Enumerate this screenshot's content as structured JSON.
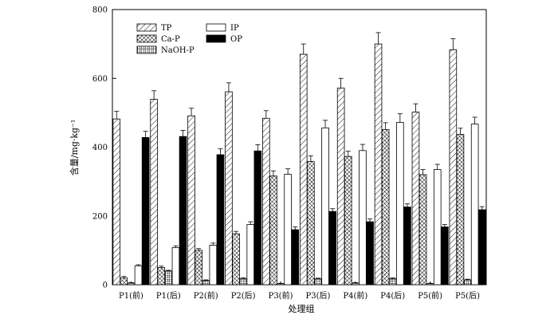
{
  "chart_data": {
    "type": "bar",
    "title": "",
    "xlabel": "处理组",
    "ylabel": "含量/mg·kg⁻¹",
    "ylim": [
      0,
      800
    ],
    "yticks": [
      0,
      200,
      400,
      600,
      800
    ],
    "grid": false,
    "legend_position": "top-left",
    "categories": [
      "P1(前)",
      "P1(后)",
      "P2(前)",
      "P2(后)",
      "P3(前)",
      "P3(后)",
      "P4(前)",
      "P4(后)",
      "P5(前)",
      "P5(后)"
    ],
    "series": [
      {
        "name": "TP",
        "pattern": "diagonal-hatch",
        "values": [
          482,
          539,
          491,
          561,
          484,
          670,
          572,
          700,
          502,
          683
        ],
        "errors": [
          22,
          25,
          22,
          26,
          22,
          30,
          28,
          33,
          24,
          32
        ]
      },
      {
        "name": "Ca-P",
        "pattern": "crosshatch",
        "values": [
          20,
          50,
          100,
          148,
          316,
          358,
          373,
          451,
          320,
          437
        ],
        "errors": [
          4,
          4,
          5,
          7,
          15,
          17,
          15,
          20,
          15,
          18
        ]
      },
      {
        "name": "NaOH-P",
        "pattern": "grid",
        "values": [
          5,
          40,
          12,
          18,
          3,
          17,
          5,
          18,
          3,
          14
        ],
        "errors": [
          1,
          2,
          2,
          2,
          1,
          2,
          1,
          2,
          1,
          2
        ]
      },
      {
        "name": "IP",
        "pattern": "white",
        "values": [
          55,
          108,
          115,
          175,
          321,
          456,
          390,
          472,
          335,
          467
        ],
        "errors": [
          3,
          5,
          6,
          8,
          16,
          22,
          18,
          25,
          15,
          20
        ]
      },
      {
        "name": "OP",
        "pattern": "black",
        "values": [
          428,
          431,
          378,
          389,
          160,
          213,
          183,
          226,
          168,
          218
        ],
        "errors": [
          18,
          18,
          17,
          18,
          8,
          8,
          8,
          9,
          7,
          9
        ]
      }
    ]
  }
}
